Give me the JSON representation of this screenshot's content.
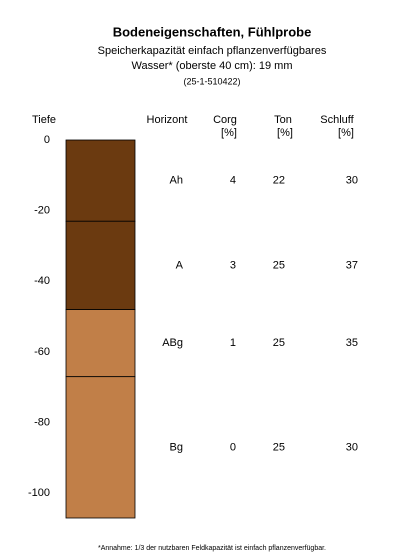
{
  "chart_data": {
    "type": "soil-profile",
    "title": "Bodeneigenschaften, Fühlprobe",
    "subtitle": [
      "Speicherkapazität einfach pflanzenverfügbares",
      "Wasser* (oberste 40 cm): 19 mm",
      "(25-1-510422)"
    ],
    "note": "*Annahme: 1/3 der nutzbaren Feldkapazität ist einfach pflanzenverfügbar.",
    "y_label": "Tiefe",
    "ylim": [
      -107,
      0
    ],
    "yticks": [
      0,
      -20,
      -40,
      -60,
      -80,
      -100
    ],
    "horizon_label": "Horizont",
    "columns": [
      {
        "name": "Corg",
        "unit": "[%]"
      },
      {
        "name": "Ton",
        "unit": "[%]"
      },
      {
        "name": "Schluff",
        "unit": "[%]"
      }
    ],
    "horizons": [
      {
        "name": "Ah",
        "top": 0,
        "bottom": -23,
        "color": "#6b3a10",
        "values": [
          4,
          22,
          30
        ]
      },
      {
        "name": "A",
        "top": -23,
        "bottom": -48,
        "color": "#6b3a10",
        "values": [
          3,
          25,
          37
        ]
      },
      {
        "name": "ABg",
        "top": -48,
        "bottom": -67,
        "color": "#c17f48",
        "values": [
          1,
          25,
          35
        ]
      },
      {
        "name": "Bg",
        "top": -67,
        "bottom": -107,
        "color": "#c17f48",
        "values": [
          0,
          25,
          30
        ]
      }
    ]
  }
}
